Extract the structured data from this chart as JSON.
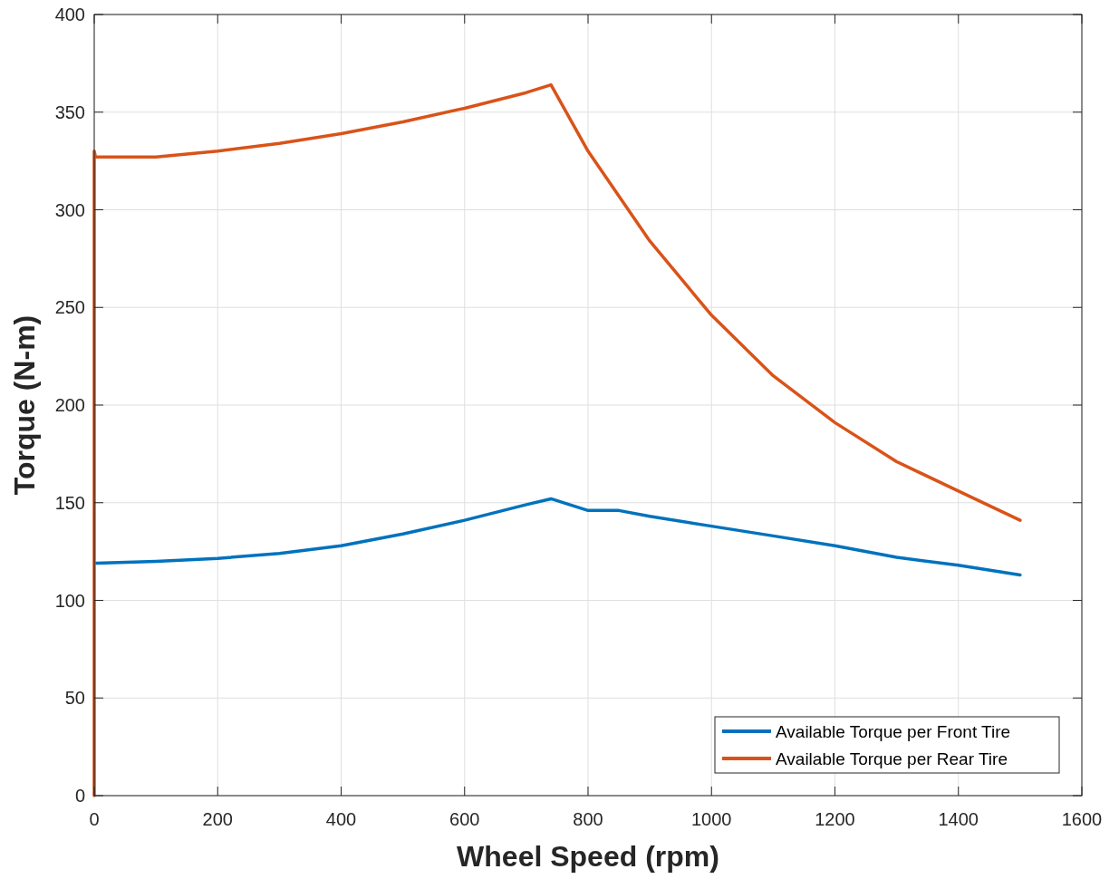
{
  "chart_data": {
    "type": "line",
    "xlabel": "Wheel Speed (rpm)",
    "ylabel": "Torque (N-m)",
    "xlim": [
      0,
      1600
    ],
    "ylim": [
      0,
      400
    ],
    "xticks": [
      0,
      200,
      400,
      600,
      800,
      1000,
      1200,
      1400,
      1600
    ],
    "yticks": [
      0,
      50,
      100,
      150,
      200,
      250,
      300,
      350,
      400
    ],
    "grid": true,
    "legend": "bottom right",
    "series": [
      {
        "name": "Available Torque per Front Tire",
        "color": "#0072bd",
        "x": [
          3,
          100,
          200,
          300,
          400,
          500,
          600,
          700,
          740,
          800,
          850,
          900,
          1000,
          1100,
          1200,
          1300,
          1400,
          1500
        ],
        "values": [
          119,
          120,
          121.5,
          124,
          128,
          134,
          141,
          149,
          152,
          146,
          146,
          143,
          138,
          133,
          128,
          122,
          118,
          113
        ]
      },
      {
        "name": "Available Torque per Rear Tire",
        "color": "#d95319",
        "x": [
          0,
          0,
          2,
          100,
          200,
          300,
          400,
          500,
          600,
          700,
          740,
          800,
          900,
          1000,
          1100,
          1200,
          1300,
          1400,
          1500
        ],
        "values": [
          0,
          330,
          327,
          327,
          330,
          334,
          339,
          345,
          352,
          360,
          364,
          330,
          284,
          246,
          215,
          191,
          171,
          156,
          141
        ]
      }
    ]
  }
}
